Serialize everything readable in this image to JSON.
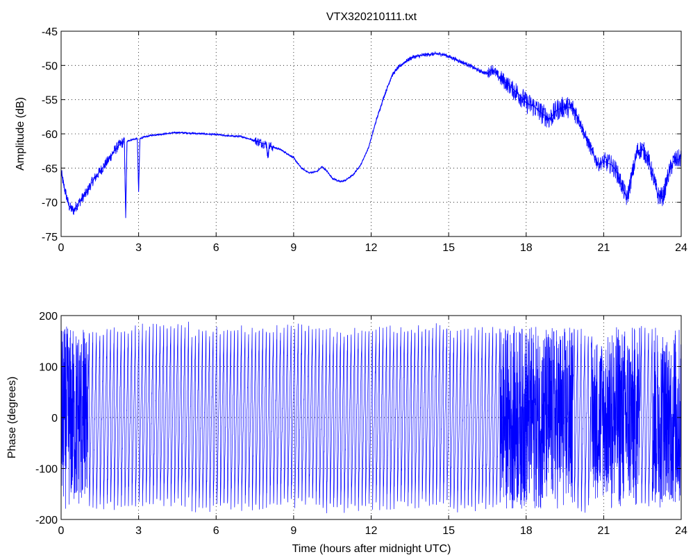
{
  "chart_data": [
    {
      "type": "line",
      "title": "VTX320210111.txt",
      "xlabel": "",
      "ylabel": "Amplitude (dB)",
      "xlim": [
        0,
        24
      ],
      "ylim": [
        -75,
        -45
      ],
      "xticks": [
        0,
        3,
        6,
        9,
        12,
        15,
        18,
        21,
        24
      ],
      "yticks": [
        -75,
        -70,
        -65,
        -60,
        -55,
        -50,
        -45
      ],
      "grid": true,
      "line_color": "#0000ff",
      "series": [
        {
          "x": [
            0,
            0.1,
            0.2,
            0.3,
            0.4,
            0.5,
            0.6,
            0.8,
            1.0,
            1.2,
            1.5,
            1.8,
            2.0,
            2.2,
            2.4,
            2.45,
            2.5,
            2.55,
            2.6,
            2.8,
            2.95,
            3.0,
            3.05,
            3.1,
            3.5,
            4.0,
            4.5,
            5.0,
            5.5,
            6.0,
            6.5,
            7.0,
            7.5,
            7.9,
            7.95,
            8.0,
            8.05,
            8.1,
            8.5,
            9.0,
            9.3,
            9.6,
            9.9,
            10.1,
            10.3,
            10.5,
            10.8,
            11.0,
            11.3,
            11.6,
            11.9,
            12.2,
            12.5,
            12.8,
            13.0,
            13.3,
            13.6,
            14.0,
            14.5,
            14.8,
            15.2,
            15.5,
            15.8,
            16.2,
            16.5,
            16.7,
            16.9,
            17.2,
            17.5,
            17.8,
            18.0,
            18.3,
            18.6,
            18.9,
            19.2,
            19.5,
            19.8,
            20.0,
            20.3,
            20.6,
            20.8,
            21.0,
            21.3,
            21.5,
            21.7,
            21.9,
            22.1,
            22.3,
            22.5,
            22.7,
            22.9,
            23.1,
            23.3,
            23.5,
            23.7,
            24.0
          ],
          "y": [
            -65.5,
            -67.5,
            -69,
            -70.5,
            -71,
            -71.2,
            -70.5,
            -69.5,
            -68.5,
            -67,
            -65.5,
            -64,
            -62.8,
            -61.8,
            -61.2,
            -61.2,
            -72.3,
            -61.2,
            -61.0,
            -60.8,
            -60.7,
            -68.5,
            -60.7,
            -60.6,
            -60.2,
            -60.0,
            -59.8,
            -59.9,
            -60.0,
            -60.1,
            -60.3,
            -60.4,
            -61.0,
            -61.5,
            -61.5,
            -63.5,
            -61.8,
            -61.8,
            -62.3,
            -63.5,
            -65.0,
            -65.7,
            -65.5,
            -64.8,
            -65.5,
            -66.5,
            -67.0,
            -66.8,
            -66.0,
            -64.5,
            -62.0,
            -58.0,
            -54.5,
            -51.5,
            -50.5,
            -49.5,
            -48.8,
            -48.5,
            -48.3,
            -48.4,
            -49.0,
            -49.5,
            -50.0,
            -50.8,
            -51.2,
            -50.5,
            -51.5,
            -52.5,
            -53.5,
            -54.5,
            -55.5,
            -56.0,
            -57.0,
            -57.8,
            -56.5,
            -56.0,
            -56.3,
            -57.5,
            -60.5,
            -63.0,
            -64.5,
            -64.0,
            -64.5,
            -65.5,
            -67.5,
            -69.5,
            -66.0,
            -62.5,
            -62.2,
            -63.5,
            -66.0,
            -69.0,
            -69.2,
            -66.0,
            -64.0,
            -63.5
          ],
          "noise_band_db": [
            [
              0,
              2.5,
              0.8
            ],
            [
              7.5,
              8.2,
              0.7
            ],
            [
              12,
              16.5,
              0.3
            ],
            [
              16.5,
              17.0,
              0.8
            ],
            [
              17.0,
              17.5,
              1.2
            ],
            [
              17.5,
              20.0,
              1.6
            ],
            [
              20.0,
              21.0,
              1.0
            ],
            [
              21.0,
              24.0,
              1.4
            ]
          ]
        }
      ]
    },
    {
      "type": "line",
      "title": "",
      "xlabel": "Time (hours after midnight UTC)",
      "ylabel": "Phase (degrees)",
      "xlim": [
        0,
        24
      ],
      "ylim": [
        -200,
        200
      ],
      "xticks": [
        0,
        3,
        6,
        9,
        12,
        15,
        18,
        21,
        24
      ],
      "yticks": [
        -200,
        -100,
        0,
        100,
        200
      ],
      "grid": true,
      "line_color": "#0000ff",
      "series": [
        {
          "wrap_range": [
            -180,
            180
          ],
          "amplitude": 180,
          "wrap_cycles_per_hour": 7.3,
          "dense_ranges": [
            [
              0,
              0.9
            ],
            [
              17.0,
              19.8
            ],
            [
              21.3,
              22.4
            ],
            [
              22.9,
              23.3
            ],
            [
              23.6,
              24.0
            ]
          ],
          "sparse_gaps": [
            [
              0.9,
              1.05
            ],
            [
              20.5,
              21.3
            ],
            [
              23.3,
              23.6
            ]
          ]
        }
      ]
    }
  ]
}
